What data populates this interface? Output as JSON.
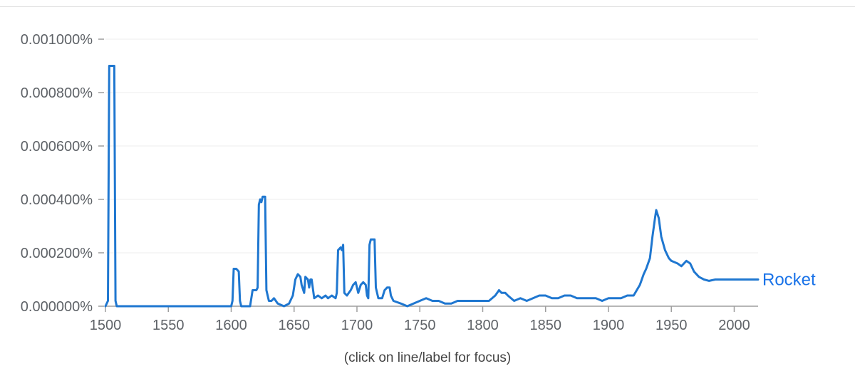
{
  "caption": "(click on line/label for focus)",
  "colors": {
    "series": "#1f77d0",
    "grid": "#ececec",
    "axis": "#9e9e9e",
    "text": "#5f6368"
  },
  "chart_data": {
    "type": "line",
    "title": "",
    "xlabel": "",
    "ylabel": "",
    "xlim": [
      1500,
      2019
    ],
    "ylim": [
      0,
      0.001
    ],
    "x_ticks": [
      1500,
      1550,
      1600,
      1650,
      1700,
      1750,
      1800,
      1850,
      1900,
      1950,
      2000
    ],
    "x_tick_labels": [
      "1500",
      "1550",
      "1600",
      "1650",
      "1700",
      "1750",
      "1800",
      "1850",
      "1900",
      "1950",
      "2000"
    ],
    "y_ticks": [
      0,
      0.0002,
      0.0004,
      0.0006,
      0.0008,
      0.001
    ],
    "y_tick_labels": [
      "0.000000%",
      "0.000200%",
      "0.000400%",
      "0.000600%",
      "0.000800%",
      "0.001000%"
    ],
    "grid": true,
    "series": [
      {
        "name": "Rocket",
        "points": [
          [
            1500,
            0
          ],
          [
            1502,
            2e-05
          ],
          [
            1503,
            0.0009
          ],
          [
            1507,
            0.0009
          ],
          [
            1508,
            2e-05
          ],
          [
            1509,
            0
          ],
          [
            1600,
            0
          ],
          [
            1601,
            2e-05
          ],
          [
            1602,
            0.00014
          ],
          [
            1604,
            0.00014
          ],
          [
            1606,
            0.00013
          ],
          [
            1607,
            2e-05
          ],
          [
            1608,
            0
          ],
          [
            1615,
            0
          ],
          [
            1617,
            6e-05
          ],
          [
            1620,
            6e-05
          ],
          [
            1621,
            7e-05
          ],
          [
            1622,
            0.00038
          ],
          [
            1623,
            0.0004
          ],
          [
            1624,
            0.00039
          ],
          [
            1625,
            0.00041
          ],
          [
            1627,
            0.00041
          ],
          [
            1628,
            6e-05
          ],
          [
            1630,
            2e-05
          ],
          [
            1632,
            2e-05
          ],
          [
            1634,
            3e-05
          ],
          [
            1637,
            1e-05
          ],
          [
            1642,
            0
          ],
          [
            1646,
            1e-05
          ],
          [
            1649,
            4e-05
          ],
          [
            1651,
            0.0001
          ],
          [
            1653,
            0.00012
          ],
          [
            1655,
            0.00011
          ],
          [
            1656,
            8e-05
          ],
          [
            1658,
            5e-05
          ],
          [
            1659,
            0.00011
          ],
          [
            1661,
            0.0001
          ],
          [
            1662,
            7e-05
          ],
          [
            1663,
            0.0001
          ],
          [
            1664,
            0.0001
          ],
          [
            1666,
            3e-05
          ],
          [
            1669,
            4e-05
          ],
          [
            1672,
            3e-05
          ],
          [
            1675,
            4e-05
          ],
          [
            1677,
            3e-05
          ],
          [
            1680,
            4e-05
          ],
          [
            1683,
            3e-05
          ],
          [
            1684,
            5e-05
          ],
          [
            1685,
            0.00021
          ],
          [
            1687,
            0.00022
          ],
          [
            1688,
            0.00021
          ],
          [
            1689,
            0.00023
          ],
          [
            1690,
            5e-05
          ],
          [
            1692,
            4e-05
          ],
          [
            1695,
            6e-05
          ],
          [
            1697,
            8e-05
          ],
          [
            1699,
            9e-05
          ],
          [
            1701,
            5e-05
          ],
          [
            1703,
            8e-05
          ],
          [
            1705,
            9e-05
          ],
          [
            1707,
            8e-05
          ],
          [
            1708,
            4e-05
          ],
          [
            1709,
            3e-05
          ],
          [
            1710,
            0.00023
          ],
          [
            1711,
            0.00025
          ],
          [
            1714,
            0.00025
          ],
          [
            1715,
            7e-05
          ],
          [
            1717,
            3e-05
          ],
          [
            1720,
            3e-05
          ],
          [
            1722,
            6e-05
          ],
          [
            1724,
            7e-05
          ],
          [
            1726,
            7e-05
          ],
          [
            1727,
            4e-05
          ],
          [
            1729,
            2e-05
          ],
          [
            1735,
            1e-05
          ],
          [
            1740,
            0
          ],
          [
            1745,
            1e-05
          ],
          [
            1750,
            2e-05
          ],
          [
            1755,
            3e-05
          ],
          [
            1760,
            2e-05
          ],
          [
            1765,
            2e-05
          ],
          [
            1770,
            1e-05
          ],
          [
            1775,
            1e-05
          ],
          [
            1780,
            2e-05
          ],
          [
            1785,
            2e-05
          ],
          [
            1790,
            2e-05
          ],
          [
            1795,
            2e-05
          ],
          [
            1800,
            2e-05
          ],
          [
            1805,
            2e-05
          ],
          [
            1810,
            4e-05
          ],
          [
            1813,
            6e-05
          ],
          [
            1815,
            5e-05
          ],
          [
            1818,
            5e-05
          ],
          [
            1820,
            4e-05
          ],
          [
            1825,
            2e-05
          ],
          [
            1830,
            3e-05
          ],
          [
            1835,
            2e-05
          ],
          [
            1840,
            3e-05
          ],
          [
            1845,
            4e-05
          ],
          [
            1850,
            4e-05
          ],
          [
            1855,
            3e-05
          ],
          [
            1860,
            3e-05
          ],
          [
            1865,
            4e-05
          ],
          [
            1870,
            4e-05
          ],
          [
            1875,
            3e-05
          ],
          [
            1880,
            3e-05
          ],
          [
            1885,
            3e-05
          ],
          [
            1890,
            3e-05
          ],
          [
            1895,
            2e-05
          ],
          [
            1900,
            3e-05
          ],
          [
            1905,
            3e-05
          ],
          [
            1910,
            3e-05
          ],
          [
            1915,
            4e-05
          ],
          [
            1920,
            4e-05
          ],
          [
            1925,
            8e-05
          ],
          [
            1928,
            0.00012
          ],
          [
            1930,
            0.00014
          ],
          [
            1933,
            0.00018
          ],
          [
            1935,
            0.00026
          ],
          [
            1937,
            0.00033
          ],
          [
            1938,
            0.00036
          ],
          [
            1940,
            0.00033
          ],
          [
            1942,
            0.00026
          ],
          [
            1945,
            0.00021
          ],
          [
            1948,
            0.00018
          ],
          [
            1950,
            0.00017
          ],
          [
            1955,
            0.00016
          ],
          [
            1958,
            0.00015
          ],
          [
            1960,
            0.00016
          ],
          [
            1962,
            0.00017
          ],
          [
            1965,
            0.00016
          ],
          [
            1968,
            0.00013
          ],
          [
            1972,
            0.00011
          ],
          [
            1976,
            0.0001
          ],
          [
            1980,
            9.5e-05
          ],
          [
            1985,
            0.0001
          ],
          [
            1990,
            0.0001
          ],
          [
            1995,
            0.0001
          ],
          [
            2000,
            0.0001
          ],
          [
            2005,
            0.0001
          ],
          [
            2010,
            0.0001
          ],
          [
            2015,
            0.0001
          ],
          [
            2019,
            0.0001
          ]
        ]
      }
    ],
    "legend": "inline-right"
  }
}
